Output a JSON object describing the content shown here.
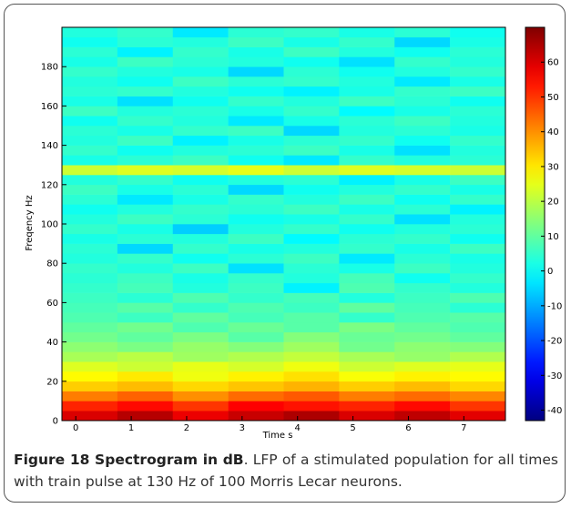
{
  "chart_data": {
    "type": "heatmap",
    "xlabel": "Time s",
    "ylabel": "Freqency Hz",
    "xlim": [
      -0.25,
      7.75
    ],
    "ylim": [
      0,
      200
    ],
    "xticks": [
      0,
      1,
      2,
      3,
      4,
      5,
      6,
      7
    ],
    "yticks": [
      0,
      20,
      40,
      60,
      80,
      100,
      120,
      140,
      160,
      180
    ],
    "x_edges": [
      -0.25,
      0.75,
      1.75,
      2.75,
      3.75,
      4.75,
      5.75,
      6.75,
      7.75
    ],
    "y_edges": [
      0,
      5,
      10,
      15,
      20,
      25,
      30,
      35,
      40,
      45,
      50,
      55,
      60,
      65,
      70,
      75,
      80,
      85,
      90,
      95,
      100,
      105,
      110,
      115,
      120,
      125,
      130,
      135,
      140,
      145,
      150,
      155,
      160,
      165,
      170,
      175,
      180,
      185,
      190,
      195,
      200
    ],
    "z": [
      [
        60,
        64,
        58,
        62,
        65,
        60,
        63,
        59
      ],
      [
        52,
        55,
        50,
        56,
        54,
        52,
        55,
        50
      ],
      [
        42,
        45,
        40,
        44,
        46,
        42,
        44,
        41
      ],
      [
        33,
        35,
        32,
        34,
        36,
        33,
        35,
        32
      ],
      [
        28,
        30,
        26,
        29,
        31,
        27,
        29,
        28
      ],
      [
        24,
        22,
        25,
        23,
        26,
        22,
        24,
        25
      ],
      [
        18,
        20,
        17,
        19,
        21,
        18,
        16,
        19
      ],
      [
        15,
        13,
        16,
        14,
        17,
        12,
        15,
        14
      ],
      [
        12,
        10,
        13,
        9,
        14,
        11,
        12,
        10
      ],
      [
        10,
        12,
        8,
        11,
        9,
        13,
        10,
        8
      ],
      [
        8,
        6,
        10,
        7,
        9,
        5,
        8,
        9
      ],
      [
        7,
        9,
        5,
        8,
        6,
        10,
        7,
        4
      ],
      [
        6,
        4,
        8,
        5,
        7,
        3,
        6,
        8
      ],
      [
        5,
        7,
        3,
        6,
        -2,
        8,
        5,
        3
      ],
      [
        4,
        6,
        2,
        5,
        3,
        7,
        1,
        5
      ],
      [
        5,
        3,
        6,
        -4,
        4,
        2,
        6,
        3
      ],
      [
        3,
        5,
        1,
        4,
        6,
        -3,
        4,
        2
      ],
      [
        4,
        -5,
        5,
        2,
        3,
        5,
        2,
        6
      ],
      [
        2,
        4,
        3,
        6,
        -1,
        4,
        5,
        1
      ],
      [
        5,
        2,
        -6,
        3,
        5,
        1,
        3,
        4
      ],
      [
        3,
        6,
        4,
        1,
        2,
        5,
        -4,
        3
      ],
      [
        1,
        3,
        5,
        4,
        6,
        2,
        4,
        -2
      ],
      [
        4,
        -3,
        2,
        5,
        3,
        6,
        1,
        5
      ],
      [
        6,
        2,
        4,
        -5,
        1,
        3,
        5,
        2
      ],
      [
        3,
        5,
        1,
        3,
        4,
        -2,
        2,
        6
      ],
      [
        22,
        24,
        23,
        25,
        22,
        24,
        23,
        22
      ],
      [
        2,
        4,
        6,
        1,
        -3,
        5,
        3,
        4
      ],
      [
        5,
        1,
        3,
        4,
        6,
        2,
        -4,
        3
      ],
      [
        3,
        6,
        -2,
        2,
        4,
        5,
        1,
        5
      ],
      [
        4,
        2,
        5,
        6,
        -5,
        3,
        4,
        2
      ],
      [
        1,
        5,
        3,
        -3,
        2,
        4,
        6,
        3
      ],
      [
        6,
        3,
        4,
        2,
        5,
        -1,
        2,
        4
      ],
      [
        2,
        -4,
        1,
        5,
        3,
        6,
        4,
        1
      ],
      [
        4,
        5,
        3,
        1,
        -2,
        2,
        5,
        6
      ],
      [
        3,
        1,
        6,
        4,
        5,
        3,
        -3,
        2
      ],
      [
        5,
        3,
        2,
        -5,
        4,
        1,
        3,
        5
      ],
      [
        2,
        6,
        4,
        3,
        1,
        -4,
        5,
        3
      ],
      [
        4,
        -2,
        5,
        2,
        6,
        3,
        1,
        4
      ],
      [
        1,
        4,
        3,
        6,
        2,
        5,
        -5,
        2
      ],
      [
        3,
        5,
        -3,
        4,
        5,
        2,
        4,
        1
      ]
    ],
    "colorbar": {
      "clim": [
        -43,
        70
      ],
      "ticks": [
        -40,
        -30,
        -20,
        -10,
        0,
        10,
        20,
        30,
        40,
        50,
        60
      ]
    }
  },
  "caption": {
    "label": "Figure 18 Spectrogram in dB",
    "text": ". LFP of a stimulated population for all times with train pulse at 130 Hz of 100 Morris Lecar neurons."
  }
}
